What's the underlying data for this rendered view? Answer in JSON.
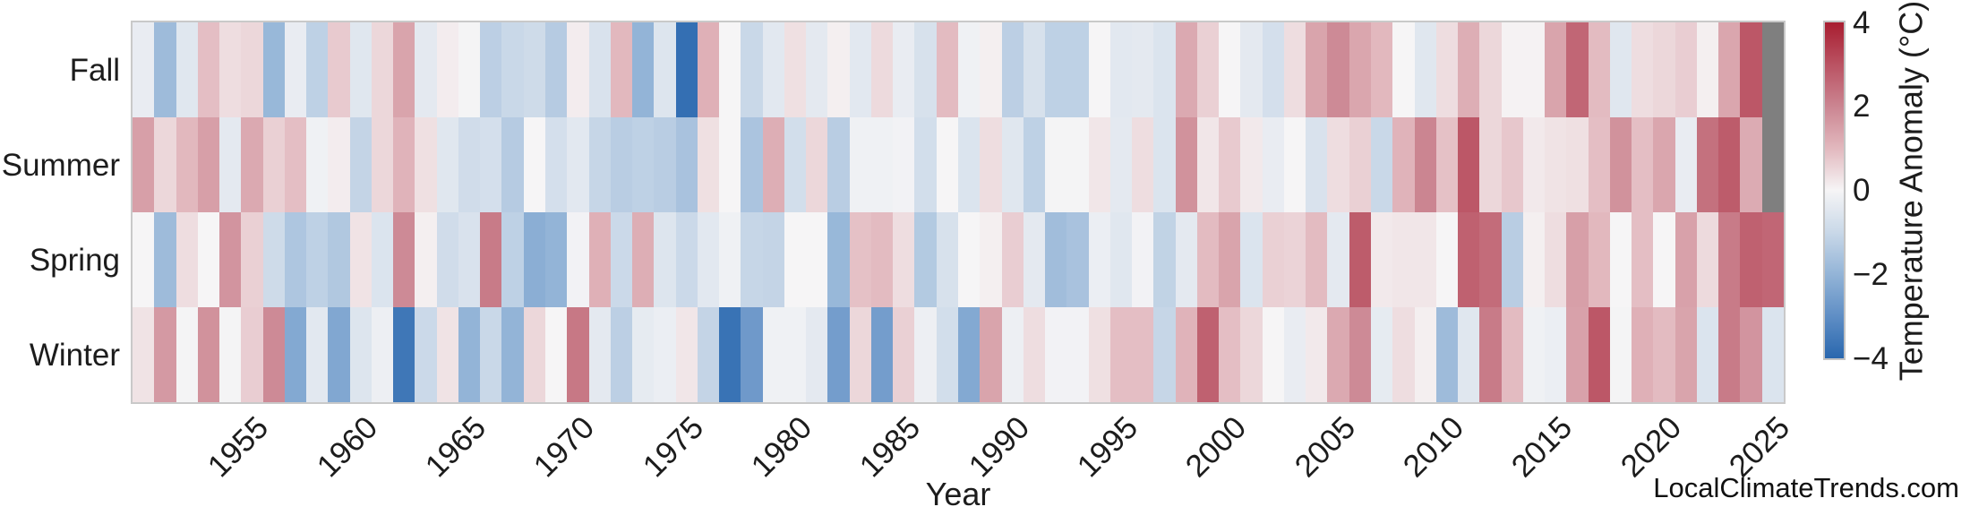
{
  "watermark": "LocalClimateTrends.com",
  "chart_data": {
    "type": "heatmap",
    "title": "",
    "xlabel": "Year",
    "ylabel": "",
    "rows": [
      "Fall",
      "Summer",
      "Spring",
      "Winter"
    ],
    "year_start": 1950,
    "year_end": 2025,
    "x_tick_labels": [
      "1955",
      "1960",
      "1965",
      "1970",
      "1975",
      "1980",
      "1985",
      "1990",
      "1995",
      "2000",
      "2005",
      "2010",
      "2015",
      "2020",
      "2025"
    ],
    "grid": false,
    "colorbar": {
      "label": "Temperature Anomaly (°C)",
      "tick_labels": [
        "4",
        "2",
        "0",
        "−2",
        "−4"
      ],
      "tick_values": [
        4,
        2,
        0,
        -2,
        -4
      ],
      "vmin": -4,
      "vmax": 4,
      "missing_color": "#7f7f7f",
      "gradient_stops": [
        {
          "v": -4,
          "color": "#2967ae"
        },
        {
          "v": -3,
          "color": "#5f8ec5"
        },
        {
          "v": -2,
          "color": "#93b4d7"
        },
        {
          "v": -1,
          "color": "#c9d8e8"
        },
        {
          "v": 0,
          "color": "#f6f5f6"
        },
        {
          "v": 1,
          "color": "#e2b8be"
        },
        {
          "v": 2,
          "color": "#cb8591"
        },
        {
          "v": 3,
          "color": "#ba5262"
        },
        {
          "v": 4,
          "color": "#a81d30"
        }
      ]
    },
    "series": [
      {
        "name": "Fall",
        "values": [
          -0.3,
          -1.8,
          -0.5,
          0.9,
          0.4,
          0.5,
          -1.9,
          -0.3,
          -1.2,
          0.7,
          -0.5,
          0.5,
          1.4,
          -0.4,
          0.15,
          -0.05,
          -1.25,
          -1.0,
          -0.9,
          -1.35,
          0.15,
          -0.65,
          1.0,
          -2.0,
          -0.55,
          -3.8,
          1.15,
          0.0,
          -1.0,
          -0.45,
          0.35,
          -0.4,
          0.1,
          -0.45,
          0.45,
          -0.3,
          -0.7,
          0.95,
          -0.15,
          0.1,
          -1.25,
          -0.7,
          -1.2,
          -1.2,
          0.0,
          -0.45,
          -0.4,
          -0.6,
          1.3,
          0.6,
          0.0,
          -0.4,
          -0.75,
          0.4,
          1.4,
          1.9,
          1.35,
          1.0,
          0.0,
          -0.5,
          0.4,
          1.2,
          0.5,
          0.05,
          0.05,
          1.4,
          2.6,
          0.95,
          -0.5,
          0.4,
          0.5,
          0.65,
          0.1,
          1.35,
          2.9,
          null
        ]
      },
      {
        "name": "Summer",
        "values": [
          1.5,
          0.5,
          1.0,
          1.5,
          -0.4,
          1.3,
          0.6,
          0.9,
          -0.15,
          0.15,
          -1.1,
          0.5,
          1.1,
          0.35,
          -0.5,
          -0.85,
          -0.75,
          -1.35,
          0.0,
          -0.75,
          -0.45,
          -1.05,
          -1.3,
          -1.2,
          -1.3,
          -1.6,
          0.35,
          0.0,
          -1.55,
          1.2,
          -0.8,
          0.5,
          -1.3,
          -0.15,
          -0.15,
          -0.1,
          -0.8,
          0.0,
          -0.6,
          0.4,
          -0.5,
          -1.2,
          -0.05,
          -0.05,
          0.25,
          -0.4,
          0.4,
          -0.6,
          1.75,
          0.25,
          0.7,
          0.2,
          -0.3,
          0.0,
          -0.65,
          0.4,
          0.6,
          -1.0,
          1.1,
          2.0,
          0.85,
          2.9,
          0.5,
          0.75,
          0.2,
          0.3,
          0.35,
          0.9,
          1.75,
          0.9,
          1.35,
          -0.3,
          2.4,
          2.8,
          1.25,
          null
        ]
      },
      {
        "name": "Spring",
        "values": [
          0.0,
          -1.8,
          0.4,
          0.0,
          1.7,
          0.6,
          -0.9,
          -1.5,
          -1.2,
          -1.45,
          0.3,
          -0.6,
          1.9,
          0.1,
          -0.85,
          -0.65,
          2.2,
          -1.2,
          -2.15,
          -2.0,
          -0.1,
          1.15,
          -0.95,
          1.2,
          -0.55,
          -0.95,
          -0.45,
          -0.15,
          -1.05,
          -1.1,
          0.0,
          0.0,
          -1.9,
          0.85,
          0.95,
          0.4,
          -1.4,
          -0.7,
          0.0,
          0.1,
          0.65,
          -0.4,
          -1.75,
          -1.6,
          -0.25,
          -0.5,
          -0.1,
          -1.15,
          -0.4,
          0.95,
          1.4,
          -0.6,
          0.6,
          0.55,
          0.95,
          -0.4,
          2.8,
          0.2,
          0.25,
          0.25,
          0.0,
          2.7,
          2.5,
          -1.3,
          0.1,
          0.4,
          1.5,
          1.0,
          0.0,
          0.9,
          0.0,
          1.45,
          0.45,
          2.2,
          2.7,
          2.6
        ]
      },
      {
        "name": "Winter",
        "values": [
          0.3,
          1.6,
          -0.05,
          1.75,
          -0.05,
          0.65,
          1.9,
          -2.3,
          -0.45,
          -2.35,
          -0.55,
          -0.2,
          -3.6,
          -0.95,
          0.3,
          -2.0,
          -1.0,
          -2.0,
          0.5,
          0.0,
          2.25,
          -0.4,
          -1.25,
          -0.35,
          -0.25,
          0.25,
          -1.1,
          -3.7,
          -2.7,
          -0.15,
          -0.15,
          -0.4,
          -2.6,
          0.5,
          -2.6,
          0.6,
          -0.2,
          -0.8,
          -2.3,
          1.4,
          -0.2,
          0.4,
          -0.1,
          -0.1,
          0.35,
          0.9,
          0.9,
          -1.05,
          1.1,
          2.7,
          0.9,
          0.5,
          0.0,
          -0.3,
          0.2,
          1.3,
          1.9,
          -0.35,
          0.4,
          0.1,
          -1.8,
          -0.5,
          2.2,
          0.95,
          -0.15,
          -0.25,
          1.45,
          2.9,
          -0.05,
          1.15,
          0.95,
          1.4,
          -0.6,
          2.2,
          1.7,
          -0.6
        ]
      }
    ]
  }
}
